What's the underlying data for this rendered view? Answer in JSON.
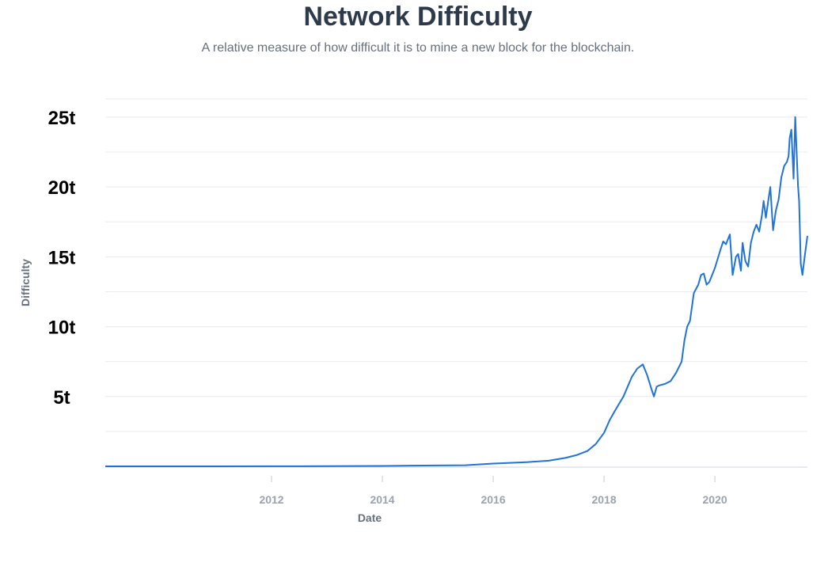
{
  "chart_data": {
    "type": "line",
    "title": "Network Difficulty",
    "subtitle": "A relative measure of how difficult it is to mine a new block for the blockchain.",
    "xlabel": "Date",
    "ylabel": "Difficulty",
    "y_tick_labels": [
      "5t",
      "10t",
      "15t",
      "20t",
      "25t"
    ],
    "y_ticks": [
      5,
      10,
      15,
      20,
      25
    ],
    "x_tick_labels": [
      "2012",
      "2014",
      "2016",
      "2018",
      "2020"
    ],
    "x_ticks": [
      2012,
      2014,
      2016,
      2018,
      2020
    ],
    "xlim": [
      2009.0,
      2021.67
    ],
    "ylim": [
      0,
      26.3
    ],
    "grid": true,
    "color": "#1f73da",
    "series": [
      {
        "x": [
          2009.0,
          2010.0,
          2011.0,
          2012.0,
          2013.0,
          2014.0,
          2014.5,
          2015.0,
          2015.5,
          2016.0,
          2016.3,
          2016.6,
          2017.0,
          2017.3,
          2017.5,
          2017.7,
          2017.85,
          2018.0,
          2018.1,
          2018.2,
          2018.35,
          2018.5,
          2018.6,
          2018.7,
          2018.78,
          2018.85,
          2018.9,
          2018.95,
          2019.0,
          2019.1,
          2019.2,
          2019.3,
          2019.4,
          2019.45,
          2019.5,
          2019.55,
          2019.62,
          2019.7,
          2019.75,
          2019.8,
          2019.85,
          2019.9,
          2020.0,
          2020.1,
          2020.15,
          2020.2,
          2020.27,
          2020.32,
          2020.38,
          2020.42,
          2020.47,
          2020.5,
          2020.55,
          2020.6,
          2020.65,
          2020.7,
          2020.75,
          2020.8,
          2020.85,
          2020.88,
          2020.92,
          2020.97,
          2021.0,
          2021.05,
          2021.1,
          2021.15,
          2021.2,
          2021.25,
          2021.3,
          2021.33,
          2021.35,
          2021.38,
          2021.42,
          2021.45,
          2021.5,
          2021.52,
          2021.55,
          2021.58,
          2021.62,
          2021.67
        ],
        "y": [
          0,
          0,
          0,
          0.003,
          0.01,
          0.03,
          0.05,
          0.06,
          0.08,
          0.2,
          0.25,
          0.3,
          0.4,
          0.6,
          0.8,
          1.1,
          1.6,
          2.4,
          3.3,
          4.0,
          5.0,
          6.4,
          7.0,
          7.3,
          6.5,
          5.6,
          5.0,
          5.7,
          5.8,
          5.9,
          6.1,
          6.7,
          7.5,
          9.0,
          10.0,
          10.4,
          12.4,
          13.0,
          13.7,
          13.8,
          13.0,
          13.2,
          14.2,
          15.5,
          16.1,
          15.9,
          16.6,
          13.7,
          15.0,
          15.2,
          14.0,
          16.0,
          14.7,
          14.3,
          16.0,
          16.8,
          17.3,
          16.8,
          18.0,
          19.0,
          17.8,
          19.2,
          20.0,
          16.9,
          18.3,
          19.1,
          20.7,
          21.5,
          21.8,
          22.2,
          23.5,
          24.1,
          20.6,
          25.0,
          20.1,
          19.0,
          14.5,
          13.7,
          15.0,
          16.5
        ]
      }
    ]
  }
}
